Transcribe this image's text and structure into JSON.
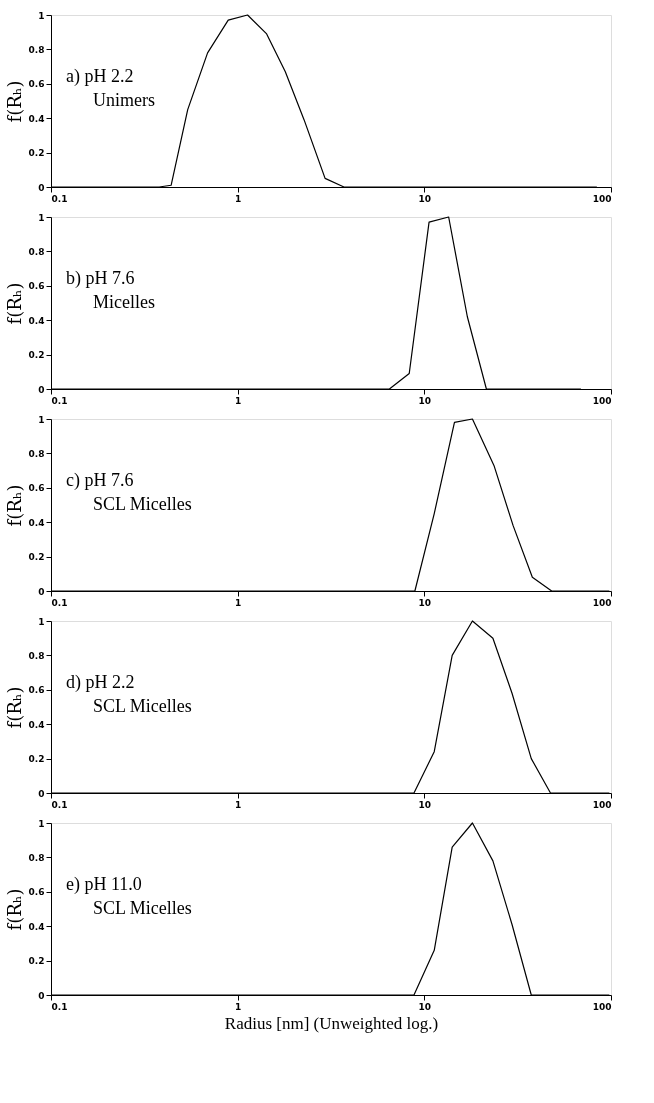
{
  "chart_data": [
    {
      "type": "line",
      "ylabel": "f(Rₕ)",
      "annotations": [
        "a)  pH 2.2",
        "Unimers"
      ],
      "x": [
        0.1,
        0.38,
        0.44,
        0.54,
        0.69,
        0.89,
        1.13,
        1.43,
        1.8,
        2.27,
        2.94,
        3.71,
        84
      ],
      "series": [
        {
          "color": "#000000",
          "values": [
            0,
            0,
            0.01,
            0.45,
            0.78,
            0.97,
            1.0,
            0.89,
            0.67,
            0.39,
            0.05,
            0,
            0
          ]
        }
      ],
      "xlim": [
        0.1,
        100
      ],
      "xticks": [
        0.1,
        1,
        10,
        100
      ],
      "ylim": [
        0,
        1
      ],
      "yticks": [
        0,
        0.2,
        0.4,
        0.6,
        0.8,
        1
      ],
      "log": "x",
      "grid": false,
      "marker": "none",
      "line_style": "solid"
    },
    {
      "type": "line",
      "ylabel": "f(Rₕ)",
      "annotations": [
        "b)  pH 7.6",
        "Micelles"
      ],
      "x": [
        0.1,
        6.5,
        8.3,
        10.6,
        13.5,
        17.0,
        21.5,
        69
      ],
      "series": [
        {
          "color": "#000000",
          "values": [
            0,
            0,
            0.09,
            0.97,
            1.0,
            0.42,
            0,
            0
          ]
        }
      ],
      "xlim": [
        0.1,
        100
      ],
      "xticks": [
        0.1,
        1,
        10,
        100
      ],
      "ylim": [
        0,
        1
      ],
      "yticks": [
        0,
        0.2,
        0.4,
        0.6,
        0.8,
        1
      ],
      "log": "x",
      "grid": false,
      "marker": "none",
      "line_style": "solid"
    },
    {
      "type": "line",
      "ylabel": "f(Rₕ)",
      "annotations": [
        "c)  pH 7.6",
        "SCL Micelles"
      ],
      "x": [
        0.1,
        8.9,
        11.3,
        14.5,
        18.1,
        23.6,
        29.9,
        37.9,
        48.1,
        98
      ],
      "series": [
        {
          "color": "#000000",
          "values": [
            0,
            0,
            0.45,
            0.98,
            1.0,
            0.73,
            0.38,
            0.08,
            0,
            0
          ]
        }
      ],
      "xlim": [
        0.1,
        100
      ],
      "xticks": [
        0.1,
        1,
        10,
        100
      ],
      "ylim": [
        0,
        1
      ],
      "yticks": [
        0,
        0.2,
        0.4,
        0.6,
        0.8,
        1
      ],
      "log": "x",
      "grid": false,
      "marker": "none",
      "line_style": "solid"
    },
    {
      "type": "line",
      "ylabel": "f(Rₕ)",
      "annotations": [
        "d)  pH 2.2",
        "SCL Micelles"
      ],
      "x": [
        0.1,
        8.8,
        11.3,
        14.1,
        18.1,
        23.3,
        29.5,
        37.4,
        47.4,
        98
      ],
      "series": [
        {
          "color": "#000000",
          "values": [
            0,
            0,
            0.24,
            0.8,
            1.0,
            0.9,
            0.58,
            0.2,
            0,
            0
          ]
        }
      ],
      "xlim": [
        0.1,
        100
      ],
      "xticks": [
        0.1,
        1,
        10,
        100
      ],
      "ylim": [
        0,
        1
      ],
      "yticks": [
        0,
        0.2,
        0.4,
        0.6,
        0.8,
        1
      ],
      "log": "x",
      "grid": false,
      "marker": "none",
      "line_style": "solid"
    },
    {
      "type": "line",
      "ylabel": "f(Rₕ)",
      "xlabel": "Radius [nm] (Unweighted log.)",
      "annotations": [
        "e)  pH 11.0",
        "SCL Micelles"
      ],
      "x": [
        0.1,
        8.8,
        11.3,
        14.1,
        18.1,
        23.3,
        29.5,
        37.4,
        98
      ],
      "series": [
        {
          "color": "#000000",
          "values": [
            0,
            0,
            0.26,
            0.86,
            1.0,
            0.78,
            0.41,
            0,
            0
          ]
        }
      ],
      "xlim": [
        0.1,
        100
      ],
      "xticks": [
        0.1,
        1,
        10,
        100
      ],
      "ylim": [
        0,
        1
      ],
      "yticks": [
        0,
        0.2,
        0.4,
        0.6,
        0.8,
        1
      ],
      "log": "x",
      "grid": false,
      "marker": "none",
      "line_style": "solid"
    }
  ]
}
